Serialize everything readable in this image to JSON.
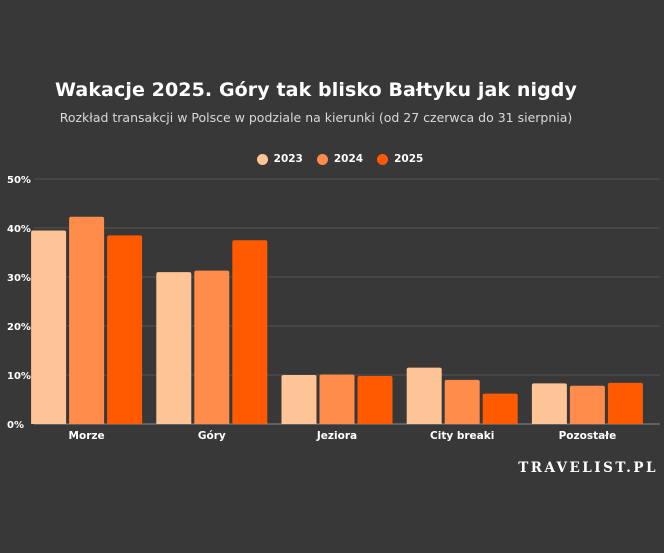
{
  "chart_data": {
    "type": "bar",
    "title": "Wakacje 2025. Góry tak blisko Bałtyku jak nigdy",
    "subtitle": "Rozkład transakcji w Polsce w podziale na kierunki (od 27 czerwca do 31 sierpnia)",
    "categories": [
      "Morze",
      "Góry",
      "Jeziora",
      "City breaki",
      "Pozostałe"
    ],
    "series": [
      {
        "name": "2023",
        "color": "#ffc495",
        "values": [
          39.5,
          31,
          10,
          11.5,
          8.3
        ]
      },
      {
        "name": "2024",
        "color": "#ff8c4a",
        "values": [
          42.3,
          31.3,
          10.1,
          9,
          7.8
        ]
      },
      {
        "name": "2025",
        "color": "#ff5a00",
        "values": [
          38.5,
          37.5,
          9.8,
          6.2,
          8.4
        ]
      }
    ],
    "y_ticks": [
      "0%",
      "10%",
      "20%",
      "30%",
      "40%",
      "50%"
    ],
    "ylim": [
      0,
      50
    ],
    "grid": true,
    "legend": "top-center"
  },
  "watermark": "TRAVELIST.PL"
}
